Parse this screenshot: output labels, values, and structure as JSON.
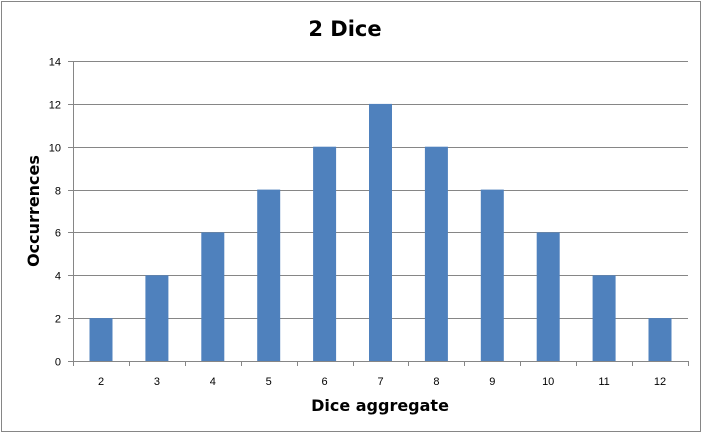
{
  "chart_data": {
    "type": "bar",
    "title": "2 Dice",
    "xlabel": "Dice aggregate",
    "ylabel": "Occurrences",
    "categories": [
      "2",
      "3",
      "4",
      "5",
      "6",
      "7",
      "8",
      "9",
      "10",
      "11",
      "12"
    ],
    "values": [
      2,
      4,
      6,
      8,
      10,
      12,
      10,
      8,
      6,
      4,
      2
    ],
    "ylim": [
      0,
      14
    ],
    "yticks": [
      0,
      2,
      4,
      6,
      8,
      10,
      12,
      14
    ],
    "grid": "horizontal",
    "legend": "none",
    "bar_color": "#4F81BD"
  }
}
